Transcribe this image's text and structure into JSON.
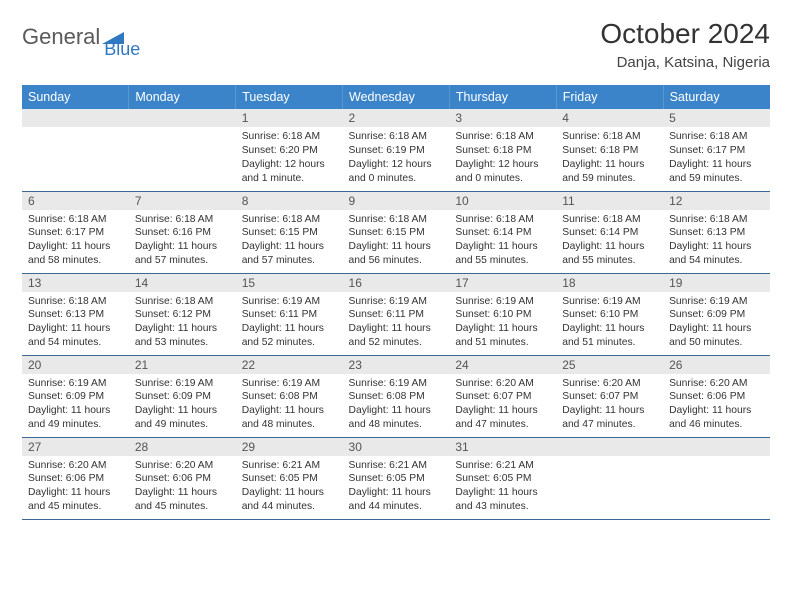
{
  "logo": {
    "text1": "General",
    "text2": "Blue"
  },
  "title": "October 2024",
  "location": "Danja, Katsina, Nigeria",
  "colors": {
    "header_bg": "#3b84c9",
    "header_text": "#ffffff",
    "daynum_bg": "#e9e9e9",
    "daynum_text": "#555555",
    "border": "#3b6a9a",
    "body_text": "#333333",
    "logo_gray": "#5a5a5a",
    "logo_blue": "#2f78c2"
  },
  "weekdays": [
    "Sunday",
    "Monday",
    "Tuesday",
    "Wednesday",
    "Thursday",
    "Friday",
    "Saturday"
  ],
  "grid": [
    [
      null,
      null,
      {
        "n": "1",
        "sr": "Sunrise: 6:18 AM",
        "ss": "Sunset: 6:20 PM",
        "dl": "Daylight: 12 hours and 1 minute."
      },
      {
        "n": "2",
        "sr": "Sunrise: 6:18 AM",
        "ss": "Sunset: 6:19 PM",
        "dl": "Daylight: 12 hours and 0 minutes."
      },
      {
        "n": "3",
        "sr": "Sunrise: 6:18 AM",
        "ss": "Sunset: 6:18 PM",
        "dl": "Daylight: 12 hours and 0 minutes."
      },
      {
        "n": "4",
        "sr": "Sunrise: 6:18 AM",
        "ss": "Sunset: 6:18 PM",
        "dl": "Daylight: 11 hours and 59 minutes."
      },
      {
        "n": "5",
        "sr": "Sunrise: 6:18 AM",
        "ss": "Sunset: 6:17 PM",
        "dl": "Daylight: 11 hours and 59 minutes."
      }
    ],
    [
      {
        "n": "6",
        "sr": "Sunrise: 6:18 AM",
        "ss": "Sunset: 6:17 PM",
        "dl": "Daylight: 11 hours and 58 minutes."
      },
      {
        "n": "7",
        "sr": "Sunrise: 6:18 AM",
        "ss": "Sunset: 6:16 PM",
        "dl": "Daylight: 11 hours and 57 minutes."
      },
      {
        "n": "8",
        "sr": "Sunrise: 6:18 AM",
        "ss": "Sunset: 6:15 PM",
        "dl": "Daylight: 11 hours and 57 minutes."
      },
      {
        "n": "9",
        "sr": "Sunrise: 6:18 AM",
        "ss": "Sunset: 6:15 PM",
        "dl": "Daylight: 11 hours and 56 minutes."
      },
      {
        "n": "10",
        "sr": "Sunrise: 6:18 AM",
        "ss": "Sunset: 6:14 PM",
        "dl": "Daylight: 11 hours and 55 minutes."
      },
      {
        "n": "11",
        "sr": "Sunrise: 6:18 AM",
        "ss": "Sunset: 6:14 PM",
        "dl": "Daylight: 11 hours and 55 minutes."
      },
      {
        "n": "12",
        "sr": "Sunrise: 6:18 AM",
        "ss": "Sunset: 6:13 PM",
        "dl": "Daylight: 11 hours and 54 minutes."
      }
    ],
    [
      {
        "n": "13",
        "sr": "Sunrise: 6:18 AM",
        "ss": "Sunset: 6:13 PM",
        "dl": "Daylight: 11 hours and 54 minutes."
      },
      {
        "n": "14",
        "sr": "Sunrise: 6:18 AM",
        "ss": "Sunset: 6:12 PM",
        "dl": "Daylight: 11 hours and 53 minutes."
      },
      {
        "n": "15",
        "sr": "Sunrise: 6:19 AM",
        "ss": "Sunset: 6:11 PM",
        "dl": "Daylight: 11 hours and 52 minutes."
      },
      {
        "n": "16",
        "sr": "Sunrise: 6:19 AM",
        "ss": "Sunset: 6:11 PM",
        "dl": "Daylight: 11 hours and 52 minutes."
      },
      {
        "n": "17",
        "sr": "Sunrise: 6:19 AM",
        "ss": "Sunset: 6:10 PM",
        "dl": "Daylight: 11 hours and 51 minutes."
      },
      {
        "n": "18",
        "sr": "Sunrise: 6:19 AM",
        "ss": "Sunset: 6:10 PM",
        "dl": "Daylight: 11 hours and 51 minutes."
      },
      {
        "n": "19",
        "sr": "Sunrise: 6:19 AM",
        "ss": "Sunset: 6:09 PM",
        "dl": "Daylight: 11 hours and 50 minutes."
      }
    ],
    [
      {
        "n": "20",
        "sr": "Sunrise: 6:19 AM",
        "ss": "Sunset: 6:09 PM",
        "dl": "Daylight: 11 hours and 49 minutes."
      },
      {
        "n": "21",
        "sr": "Sunrise: 6:19 AM",
        "ss": "Sunset: 6:09 PM",
        "dl": "Daylight: 11 hours and 49 minutes."
      },
      {
        "n": "22",
        "sr": "Sunrise: 6:19 AM",
        "ss": "Sunset: 6:08 PM",
        "dl": "Daylight: 11 hours and 48 minutes."
      },
      {
        "n": "23",
        "sr": "Sunrise: 6:19 AM",
        "ss": "Sunset: 6:08 PM",
        "dl": "Daylight: 11 hours and 48 minutes."
      },
      {
        "n": "24",
        "sr": "Sunrise: 6:20 AM",
        "ss": "Sunset: 6:07 PM",
        "dl": "Daylight: 11 hours and 47 minutes."
      },
      {
        "n": "25",
        "sr": "Sunrise: 6:20 AM",
        "ss": "Sunset: 6:07 PM",
        "dl": "Daylight: 11 hours and 47 minutes."
      },
      {
        "n": "26",
        "sr": "Sunrise: 6:20 AM",
        "ss": "Sunset: 6:06 PM",
        "dl": "Daylight: 11 hours and 46 minutes."
      }
    ],
    [
      {
        "n": "27",
        "sr": "Sunrise: 6:20 AM",
        "ss": "Sunset: 6:06 PM",
        "dl": "Daylight: 11 hours and 45 minutes."
      },
      {
        "n": "28",
        "sr": "Sunrise: 6:20 AM",
        "ss": "Sunset: 6:06 PM",
        "dl": "Daylight: 11 hours and 45 minutes."
      },
      {
        "n": "29",
        "sr": "Sunrise: 6:21 AM",
        "ss": "Sunset: 6:05 PM",
        "dl": "Daylight: 11 hours and 44 minutes."
      },
      {
        "n": "30",
        "sr": "Sunrise: 6:21 AM",
        "ss": "Sunset: 6:05 PM",
        "dl": "Daylight: 11 hours and 44 minutes."
      },
      {
        "n": "31",
        "sr": "Sunrise: 6:21 AM",
        "ss": "Sunset: 6:05 PM",
        "dl": "Daylight: 11 hours and 43 minutes."
      },
      null,
      null
    ]
  ]
}
